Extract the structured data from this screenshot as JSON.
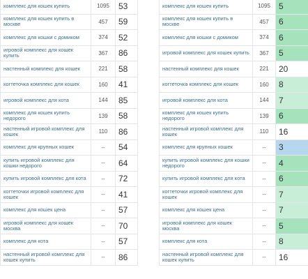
{
  "left_table": {
    "rows": [
      [
        "комплекс для кошек купить",
        1095,
        53
      ],
      [
        "комплекс для кошек купить в москве",
        457,
        59
      ],
      [
        "комплекс для кошки с домиком",
        374,
        52
      ],
      [
        "игровой комплекс для кошек купить",
        367,
        86
      ],
      [
        "настенный комплекс для кошек",
        221,
        58
      ],
      [
        "когтеточка комплекс для кошек",
        160,
        41
      ],
      [
        "игровой комплекс для кота",
        144,
        85
      ],
      [
        "комплекс для кошек купить недорого",
        139,
        58
      ],
      [
        "настенный игровой комплекс для кошек",
        110,
        86
      ],
      [
        "комплекс для крупных кошек",
        "--",
        54
      ],
      [
        "купить игровой комплекс для кошки недорого",
        "--",
        64
      ],
      [
        "купить игровой комплекс для кота",
        "--",
        72
      ],
      [
        "когтеточки игровой комплекс для кошек",
        "--",
        41
      ],
      [
        "комплекс для кошек цена",
        "--",
        57
      ],
      [
        "игровой комплекс для кошек москва",
        "--",
        70
      ],
      [
        "комплекс для кота",
        "--",
        57
      ],
      [
        "настенный игровой комплекс для кошек купить",
        "--",
        86
      ]
    ]
  },
  "right_table": {
    "rows": [
      [
        "комплекс для кошек купить",
        1095,
        5
      ],
      [
        "комплекс для кошек купить в москве",
        457,
        6
      ],
      [
        "комплекс для кошки с домиком",
        374,
        6
      ],
      [
        "игровой комплекс для кошек купить",
        367,
        5
      ],
      [
        "настенный комплекс для кошек",
        221,
        20
      ],
      [
        "когтеточка комплекс для кошек",
        160,
        8
      ],
      [
        "игровой комплекс для кота",
        144,
        7
      ],
      [
        "комплекс для кошек купить недорого",
        139,
        6
      ],
      [
        "настенный игровой комплекс для кошек",
        110,
        16
      ],
      [
        "комплекс для крупных кошек",
        "--",
        3
      ],
      [
        "купить игровой комплекс для кошки недорого",
        "--",
        4
      ],
      [
        "купить игровой комплекс для кота",
        "--",
        6
      ],
      [
        "когтеточки игровой комплекс для кошек",
        "--",
        7
      ],
      [
        "комплекс для кошек цена",
        "--",
        7
      ],
      [
        "игровой комплекс для кошек москва",
        "--",
        5
      ],
      [
        "комплекс для кота",
        "--",
        8
      ],
      [
        "настенный игровой комплекс для кошек купить",
        "--",
        16
      ]
    ]
  }
}
